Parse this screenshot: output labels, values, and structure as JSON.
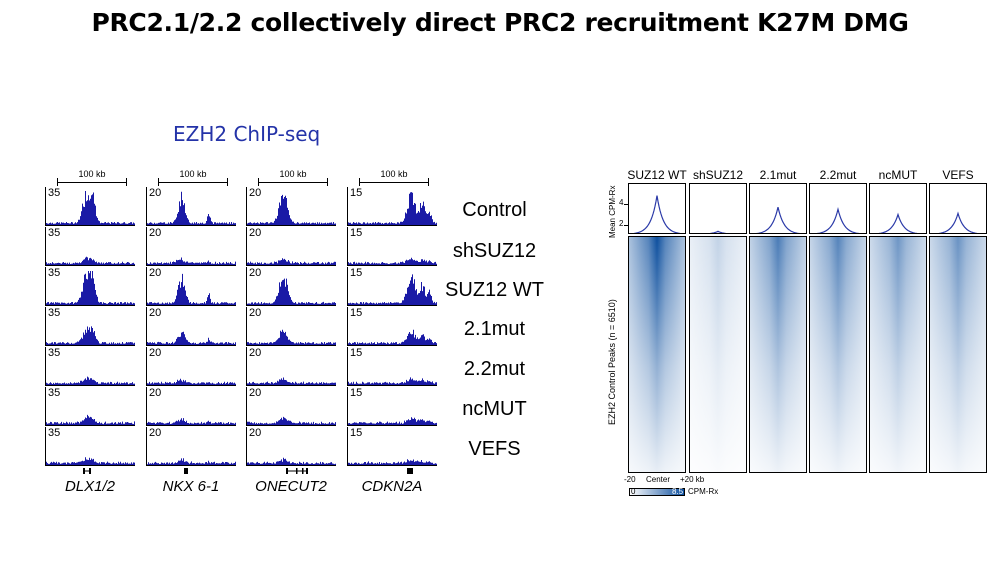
{
  "title": "PRC2.1/2.2 collectively direct PRC2 recruitment K27M DMG",
  "left_panel": {
    "title": "EZH2 ChIP-seq",
    "scale_bar_label": "100 kb",
    "genes": [
      "DLX1/2",
      "NKX 6-1",
      "ONECUT2",
      "CDKN2A"
    ],
    "gene_scales": [
      "35",
      "20",
      "20",
      "15"
    ],
    "conditions": [
      "Control",
      "shSUZ12",
      "SUZ12 WT",
      "2.1mut",
      "2.2mut",
      "ncMUT",
      "VEFS"
    ],
    "track_color": "#1a1aa6"
  },
  "right_panel": {
    "column_labels": [
      "SUZ12 WT",
      "shSUZ12",
      "2.1mut",
      "2.2mut",
      "ncMUT",
      "VEFS"
    ],
    "profile_ylabel": "Mean CPM-Rx",
    "profile_yticks": [
      "4",
      "2"
    ],
    "heatmap_ylabel": "EZH2 Control Peaks (n = 6510)",
    "x_ticks": [
      "-20",
      "Center",
      "+20 kb"
    ],
    "colorbar": {
      "min": "0",
      "max": "8.5",
      "unit": "CPM-Rx",
      "low_color": "#ffffff",
      "high_color": "#0d4f9e"
    },
    "profile_color": "#2b3aa8",
    "profile_peak_heights": [
      4.8,
      1.4,
      3.7,
      3.5,
      3.0,
      3.1
    ],
    "heatmap_intensity": [
      1.0,
      0.25,
      0.75,
      0.7,
      0.6,
      0.62
    ]
  }
}
